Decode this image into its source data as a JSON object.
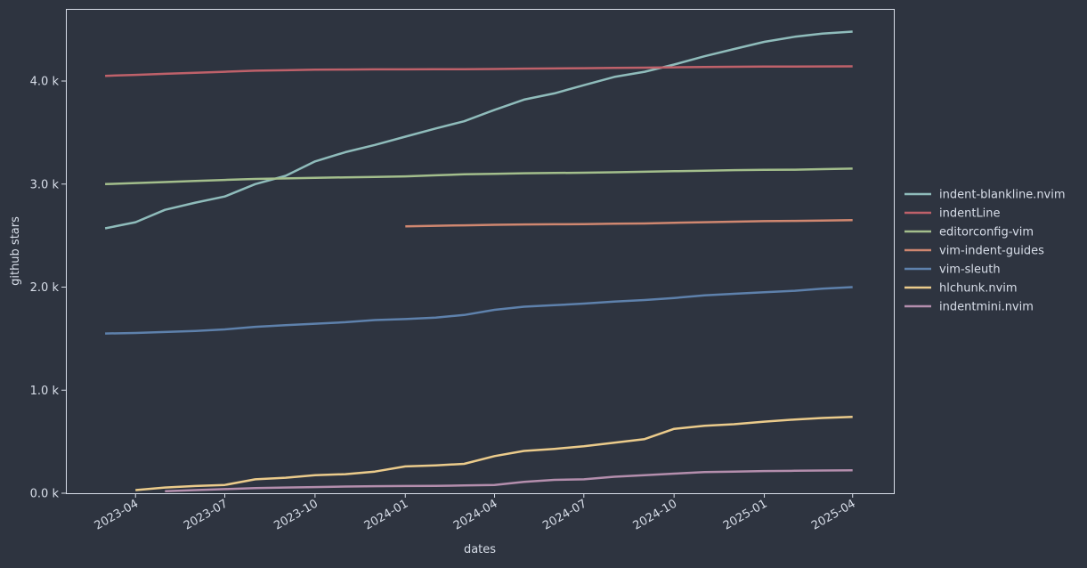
{
  "chart_data": {
    "type": "line",
    "title": "",
    "xlabel": "dates",
    "ylabel": "github stars",
    "x_ticks": [
      "2023-04",
      "2023-07",
      "2023-10",
      "2024-01",
      "2024-04",
      "2024-07",
      "2024-10",
      "2025-01",
      "2025-04"
    ],
    "y_ticks": [
      0,
      1000,
      2000,
      3000,
      4000
    ],
    "y_tick_labels": [
      "0.0 k",
      "1.0 k",
      "2.0 k",
      "3.0 k",
      "4.0 k"
    ],
    "xlim": [
      "2023-01-20",
      "2025-05-13"
    ],
    "ylim": [
      0,
      4700
    ],
    "grid": false,
    "legend_position": "right, outside plot",
    "background_color": "#2e3440",
    "series": [
      {
        "name": "indent-blankline.nvim",
        "color": "#8fbcbb",
        "x": [
          "2023-03-01",
          "2023-04-01",
          "2023-05-01",
          "2023-06-01",
          "2023-07-01",
          "2023-08-01",
          "2023-09-01",
          "2023-10-01",
          "2023-11-01",
          "2023-12-01",
          "2024-01-01",
          "2024-02-01",
          "2024-03-01",
          "2024-04-01",
          "2024-05-01",
          "2024-06-01",
          "2024-07-01",
          "2024-08-01",
          "2024-09-01",
          "2024-10-01",
          "2024-11-01",
          "2024-12-01",
          "2025-01-01",
          "2025-02-01",
          "2025-03-01",
          "2025-04-01"
        ],
        "y": [
          2570,
          2630,
          2750,
          2820,
          2880,
          3000,
          3080,
          3220,
          3310,
          3380,
          3460,
          3540,
          3610,
          3720,
          3820,
          3880,
          3960,
          4040,
          4090,
          4160,
          4240,
          4310,
          4380,
          4430,
          4460,
          4480
        ]
      },
      {
        "name": "indentLine",
        "color": "#bf616a",
        "x": [
          "2023-03-01",
          "2023-04-01",
          "2023-05-01",
          "2023-06-01",
          "2023-07-01",
          "2023-08-01",
          "2023-09-01",
          "2023-10-01",
          "2023-11-01",
          "2023-12-01",
          "2024-01-01",
          "2024-02-01",
          "2024-03-01",
          "2024-04-01",
          "2024-05-01",
          "2024-06-01",
          "2024-07-01",
          "2024-08-01",
          "2024-09-01",
          "2024-10-01",
          "2024-11-01",
          "2024-12-01",
          "2025-01-01",
          "2025-02-01",
          "2025-03-01",
          "2025-04-01"
        ],
        "y": [
          4050,
          4060,
          4070,
          4080,
          4090,
          4100,
          4105,
          4110,
          4112,
          4113,
          4113,
          4114,
          4115,
          4117,
          4120,
          4122,
          4125,
          4128,
          4130,
          4133,
          4136,
          4138,
          4140,
          4141,
          4142,
          4143
        ]
      },
      {
        "name": "editorconfig-vim",
        "color": "#a3be8c",
        "x": [
          "2023-03-01",
          "2023-04-01",
          "2023-05-01",
          "2023-06-01",
          "2023-07-01",
          "2023-08-01",
          "2023-09-01",
          "2023-10-01",
          "2023-11-01",
          "2023-12-01",
          "2024-01-01",
          "2024-02-01",
          "2024-03-01",
          "2024-04-01",
          "2024-05-01",
          "2024-06-01",
          "2024-07-01",
          "2024-08-01",
          "2024-09-01",
          "2024-10-01",
          "2024-11-01",
          "2024-12-01",
          "2025-01-01",
          "2025-02-01",
          "2025-03-01",
          "2025-04-01"
        ],
        "y": [
          3000,
          3010,
          3020,
          3030,
          3040,
          3050,
          3055,
          3060,
          3065,
          3070,
          3075,
          3085,
          3095,
          3100,
          3105,
          3108,
          3110,
          3115,
          3120,
          3125,
          3130,
          3135,
          3138,
          3140,
          3145,
          3150
        ]
      },
      {
        "name": "vim-indent-guides",
        "color": "#d08770",
        "x": [
          "2024-01-01",
          "2024-02-01",
          "2024-03-01",
          "2024-04-01",
          "2024-05-01",
          "2024-06-01",
          "2024-07-01",
          "2024-08-01",
          "2024-09-01",
          "2024-10-01",
          "2024-11-01",
          "2024-12-01",
          "2025-01-01",
          "2025-02-01",
          "2025-03-01",
          "2025-04-01"
        ],
        "y": [
          2590,
          2595,
          2600,
          2605,
          2608,
          2610,
          2612,
          2615,
          2618,
          2625,
          2630,
          2635,
          2640,
          2643,
          2646,
          2650
        ]
      },
      {
        "name": "vim-sleuth",
        "color": "#5e81ac",
        "x": [
          "2023-03-01",
          "2023-04-01",
          "2023-05-01",
          "2023-06-01",
          "2023-07-01",
          "2023-08-01",
          "2023-09-01",
          "2023-10-01",
          "2023-11-01",
          "2023-12-01",
          "2024-01-01",
          "2024-02-01",
          "2024-03-01",
          "2024-04-01",
          "2024-05-01",
          "2024-06-01",
          "2024-07-01",
          "2024-08-01",
          "2024-09-01",
          "2024-10-01",
          "2024-11-01",
          "2024-12-01",
          "2025-01-01",
          "2025-02-01",
          "2025-03-01",
          "2025-04-01"
        ],
        "y": [
          1550,
          1555,
          1565,
          1575,
          1590,
          1615,
          1630,
          1645,
          1660,
          1680,
          1690,
          1705,
          1730,
          1780,
          1810,
          1825,
          1840,
          1860,
          1875,
          1895,
          1920,
          1935,
          1950,
          1965,
          1985,
          2000
        ]
      },
      {
        "name": "hlchunk.nvim",
        "color": "#ebcb8b",
        "x": [
          "2023-04-01",
          "2023-05-01",
          "2023-06-01",
          "2023-07-01",
          "2023-08-01",
          "2023-09-01",
          "2023-10-01",
          "2023-11-01",
          "2023-12-01",
          "2024-01-01",
          "2024-02-01",
          "2024-03-01",
          "2024-04-01",
          "2024-05-01",
          "2024-06-01",
          "2024-07-01",
          "2024-08-01",
          "2024-09-01",
          "2024-10-01",
          "2024-11-01",
          "2024-12-01",
          "2025-01-01",
          "2025-02-01",
          "2025-03-01",
          "2025-04-01"
        ],
        "y": [
          30,
          55,
          70,
          80,
          135,
          150,
          175,
          185,
          210,
          260,
          270,
          285,
          360,
          410,
          430,
          455,
          490,
          525,
          625,
          655,
          670,
          695,
          715,
          730,
          740
        ]
      },
      {
        "name": "indentmini.nvim",
        "color": "#b48ead",
        "x": [
          "2023-05-01",
          "2023-06-01",
          "2023-07-01",
          "2023-08-01",
          "2023-09-01",
          "2023-10-01",
          "2023-11-01",
          "2023-12-01",
          "2024-01-01",
          "2024-02-01",
          "2024-03-01",
          "2024-04-01",
          "2024-05-01",
          "2024-06-01",
          "2024-07-01",
          "2024-08-01",
          "2024-09-01",
          "2024-10-01",
          "2024-11-01",
          "2024-12-01",
          "2025-01-01",
          "2025-02-01",
          "2025-03-01",
          "2025-04-01"
        ],
        "y": [
          20,
          30,
          40,
          50,
          55,
          60,
          65,
          68,
          70,
          72,
          75,
          80,
          110,
          130,
          135,
          160,
          175,
          190,
          205,
          210,
          215,
          218,
          220,
          222
        ]
      }
    ]
  }
}
